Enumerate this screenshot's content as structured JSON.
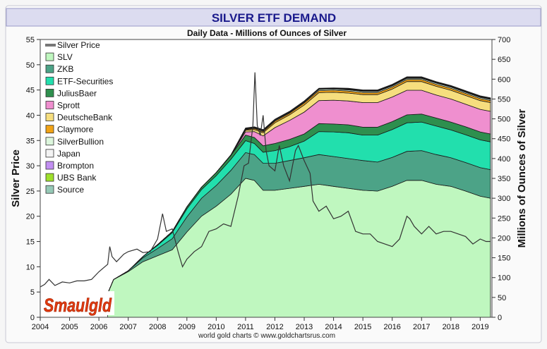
{
  "chart_data": {
    "type": "area",
    "title": "SILVER ETF DEMAND",
    "subtitle": "Daily Data - Millions of Ounces of Silver",
    "ylabel_left": "Silver Price",
    "ylabel_right": "Millions of Ounces of Silver",
    "credit": "world gold charts © www.goldchartsrus.com",
    "logo_text": "Smaulgld",
    "colors": {
      "background": "#f6f6f6",
      "plot": "#ffffff",
      "title_box": "#dcdcf0",
      "title_text": "#1a1a8c",
      "price": "#333333"
    },
    "xlim": [
      2004,
      2019.4
    ],
    "ylim_left": [
      0,
      55
    ],
    "ylim_right": [
      0,
      700
    ],
    "x_ticks": [
      "2004",
      "2005",
      "2006",
      "2007",
      "2008",
      "2009",
      "2010",
      "2011",
      "2012",
      "2013",
      "2014",
      "2015",
      "2016",
      "2017",
      "2018",
      "2019"
    ],
    "left_ticks": [
      "0",
      "5",
      "10",
      "15",
      "20",
      "25",
      "30",
      "35",
      "40",
      "45",
      "50",
      "55"
    ],
    "right_ticks": [
      "0",
      "50",
      "100",
      "150",
      "200",
      "250",
      "300",
      "350",
      "400",
      "450",
      "500",
      "550",
      "600",
      "650",
      "700"
    ],
    "legend": [
      {
        "name": "Silver Price",
        "color": "#777777",
        "kind": "line"
      },
      {
        "name": "SLV",
        "color": "#bff7bf",
        "kind": "box"
      },
      {
        "name": "ZKB",
        "color": "#4ca387",
        "kind": "box"
      },
      {
        "name": "ETF-Securities",
        "color": "#22dfad",
        "kind": "box"
      },
      {
        "name": "JuliusBaer",
        "color": "#2e8f4e",
        "kind": "box"
      },
      {
        "name": "Sprott",
        "color": "#ef8fcf",
        "kind": "box"
      },
      {
        "name": "DeutscheBank",
        "color": "#f6de7e",
        "kind": "box"
      },
      {
        "name": "Claymore",
        "color": "#f1a316",
        "kind": "box"
      },
      {
        "name": "SilverBullion",
        "color": "#ddf7dd",
        "kind": "box"
      },
      {
        "name": "Japan",
        "color": "#f4f4f4",
        "kind": "box"
      },
      {
        "name": "Brompton",
        "color": "#c28ff2",
        "kind": "box"
      },
      {
        "name": "UBS Bank",
        "color": "#9ee02b",
        "kind": "box"
      },
      {
        "name": "Source",
        "color": "#96c9b6",
        "kind": "box"
      }
    ],
    "x": [
      2006.3,
      2006.5,
      2007.0,
      2007.5,
      2008.0,
      2008.5,
      2009.0,
      2009.5,
      2010.0,
      2010.5,
      2011.0,
      2011.3,
      2011.6,
      2012.0,
      2012.5,
      2013.0,
      2013.5,
      2014.0,
      2014.5,
      2015.0,
      2015.5,
      2016.0,
      2016.5,
      2017.0,
      2017.5,
      2018.0,
      2018.5,
      2019.0,
      2019.35
    ],
    "series": [
      {
        "name": "SLV",
        "values": [
          60,
          95,
          115,
          140,
          155,
          170,
          215,
          255,
          280,
          310,
          350,
          345,
          320,
          320,
          325,
          330,
          335,
          330,
          325,
          320,
          318,
          330,
          345,
          345,
          335,
          330,
          318,
          305,
          300
        ]
      },
      {
        "name": "ZKB",
        "values": [
          0,
          0,
          2,
          10,
          18,
          28,
          38,
          45,
          52,
          60,
          65,
          65,
          68,
          68,
          70,
          72,
          75,
          75,
          75,
          75,
          73,
          73,
          73,
          75,
          75,
          72,
          72,
          72,
          72
        ]
      },
      {
        "name": "ETF-Securities",
        "values": [
          0,
          0,
          0,
          3,
          8,
          15,
          20,
          22,
          25,
          28,
          30,
          28,
          28,
          32,
          35,
          42,
          58,
          62,
          65,
          64,
          68,
          70,
          72,
          72,
          72,
          70,
          70,
          70,
          70
        ]
      },
      {
        "name": "JuliusBaer",
        "values": [
          0,
          0,
          0,
          0,
          2,
          3,
          5,
          6,
          8,
          10,
          14,
          15,
          16,
          18,
          18,
          18,
          20,
          20,
          20,
          20,
          20,
          20,
          20,
          20,
          20,
          20,
          20,
          20,
          20
        ]
      },
      {
        "name": "Sprott",
        "values": [
          0,
          0,
          0,
          0,
          0,
          0,
          0,
          0,
          0,
          0,
          8,
          15,
          25,
          40,
          48,
          55,
          58,
          60,
          60,
          62,
          62,
          62,
          62,
          60,
          58,
          58,
          57,
          57,
          57
        ]
      },
      {
        "name": "DeutscheBank",
        "values": [
          0,
          0,
          0,
          0,
          0,
          0,
          0,
          0,
          0,
          0,
          4,
          5,
          8,
          12,
          14,
          18,
          20,
          20,
          20,
          20,
          20,
          20,
          22,
          22,
          22,
          22,
          22,
          22,
          22
        ]
      },
      {
        "name": "Claymore",
        "values": [
          0,
          0,
          0,
          0,
          0,
          0,
          0,
          0,
          0,
          0,
          2,
          3,
          3,
          4,
          4,
          5,
          5,
          5,
          5,
          5,
          5,
          5,
          5,
          5,
          5,
          5,
          5,
          5,
          5
        ]
      },
      {
        "name": "SilverBullion",
        "values": [
          0,
          0,
          0,
          0,
          0,
          0,
          0,
          0,
          0,
          0,
          1,
          1,
          2,
          2,
          2,
          2,
          3,
          3,
          3,
          3,
          3,
          3,
          3,
          3,
          3,
          3,
          3,
          3,
          3
        ]
      },
      {
        "name": "Japan",
        "values": [
          0,
          0,
          0,
          0,
          0,
          0,
          0,
          0,
          0,
          1,
          1,
          1,
          1,
          1,
          1,
          1,
          1,
          1,
          1,
          1,
          1,
          1,
          1,
          1,
          1,
          1,
          1,
          1,
          1
        ]
      },
      {
        "name": "Brompton",
        "values": [
          0,
          0,
          0,
          0,
          0,
          0,
          0,
          0,
          0,
          0,
          0,
          0,
          0,
          0,
          0,
          0,
          0,
          0,
          1,
          1,
          1,
          1,
          1,
          1,
          1,
          1,
          1,
          1,
          1
        ]
      },
      {
        "name": "UBS Bank",
        "values": [
          0,
          0,
          0,
          0,
          0,
          0,
          0,
          0,
          0,
          0,
          1,
          1,
          1,
          1,
          1,
          1,
          1,
          1,
          1,
          1,
          1,
          1,
          1,
          1,
          1,
          1,
          1,
          1,
          1
        ]
      },
      {
        "name": "Source",
        "values": [
          0,
          0,
          0,
          0,
          0,
          0,
          0,
          0,
          0,
          0,
          1,
          1,
          1,
          1,
          1,
          1,
          1,
          1,
          1,
          1,
          1,
          1,
          1,
          1,
          1,
          1,
          1,
          1,
          1
        ]
      }
    ],
    "price": {
      "name": "Silver Price",
      "x": [
        2004.0,
        2004.15,
        2004.3,
        2004.5,
        2004.75,
        2005.0,
        2005.25,
        2005.5,
        2005.75,
        2006.0,
        2006.3,
        2006.37,
        2006.45,
        2006.6,
        2006.85,
        2007.0,
        2007.3,
        2007.5,
        2007.75,
        2008.0,
        2008.17,
        2008.3,
        2008.5,
        2008.7,
        2008.85,
        2009.0,
        2009.25,
        2009.5,
        2009.75,
        2010.0,
        2010.25,
        2010.5,
        2010.75,
        2010.95,
        2011.1,
        2011.25,
        2011.32,
        2011.4,
        2011.5,
        2011.6,
        2011.7,
        2011.8,
        2012.0,
        2012.15,
        2012.3,
        2012.5,
        2012.7,
        2012.8,
        2013.0,
        2013.2,
        2013.3,
        2013.5,
        2013.75,
        2014.0,
        2014.25,
        2014.5,
        2014.75,
        2015.0,
        2015.25,
        2015.5,
        2015.75,
        2016.0,
        2016.25,
        2016.5,
        2016.6,
        2016.75,
        2017.0,
        2017.25,
        2017.5,
        2017.75,
        2018.0,
        2018.25,
        2018.5,
        2018.75,
        2019.0,
        2019.2,
        2019.35
      ],
      "values": [
        6.0,
        6.5,
        7.5,
        6.3,
        7.0,
        6.8,
        7.2,
        7.2,
        7.5,
        9.0,
        10.5,
        14.0,
        12.0,
        11.0,
        12.5,
        13.0,
        13.5,
        12.8,
        13.0,
        15.5,
        20.5,
        17.0,
        17.5,
        13.0,
        10.0,
        11.5,
        13.0,
        14.0,
        17.0,
        17.5,
        18.5,
        18.0,
        24.0,
        30.0,
        30.5,
        38.0,
        48.5,
        38.0,
        36.0,
        40.0,
        33.0,
        30.0,
        29.0,
        34.0,
        30.0,
        27.0,
        33.0,
        34.0,
        31.0,
        28.5,
        23.0,
        21.0,
        22.0,
        19.5,
        20.0,
        21.0,
        17.0,
        16.5,
        16.5,
        15.0,
        14.5,
        14.0,
        15.5,
        20.0,
        19.5,
        18.0,
        16.5,
        18.0,
        16.5,
        17.0,
        17.0,
        16.5,
        16.0,
        14.5,
        15.5,
        15.0,
        15.0
      ]
    }
  }
}
